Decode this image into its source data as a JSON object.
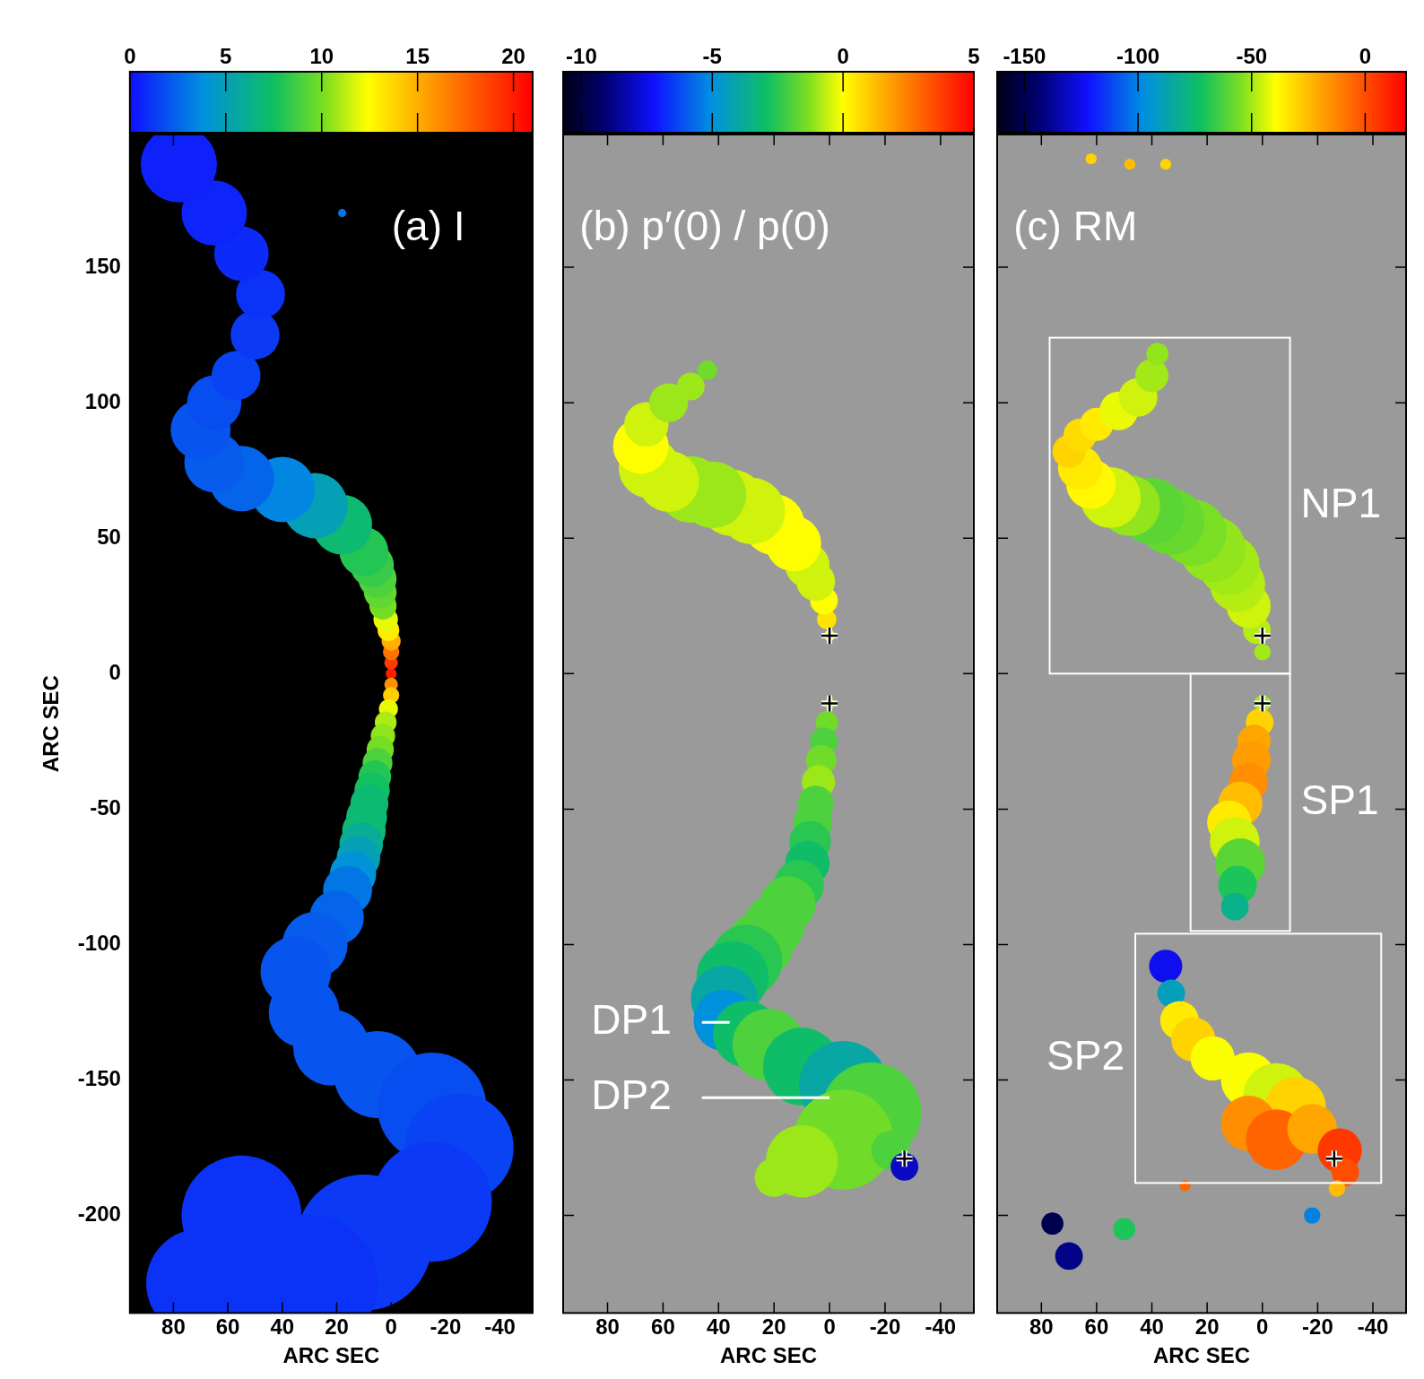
{
  "chart_data": [
    {
      "type": "heatmap",
      "title": "(a) I",
      "xlabel": "ARC SEC",
      "ylabel": "ARC SEC",
      "xlim": [
        96,
        -52
      ],
      "ylim": [
        -236,
        199
      ],
      "xticks": [
        80,
        60,
        40,
        20,
        0,
        -20,
        -40
      ],
      "yticks": [
        -200,
        -150,
        -100,
        -50,
        0,
        50,
        100,
        150
      ],
      "colorbar": {
        "range": [
          0,
          21
        ],
        "ticks": [
          0,
          5,
          10,
          15,
          20
        ]
      },
      "cells": {
        "x": [
          0,
          0,
          0,
          0,
          1,
          2,
          3,
          4,
          5,
          7,
          10,
          18,
          28,
          40,
          55,
          65,
          70,
          65,
          57,
          50,
          48,
          55,
          65,
          78,
          18,
          0,
          0,
          1,
          2,
          3,
          4,
          5,
          6,
          7,
          8,
          9,
          10,
          11,
          12,
          14,
          16,
          20,
          28,
          35,
          32,
          22,
          5,
          -15,
          -25,
          -15,
          10,
          30,
          55,
          70,
          40
        ],
        "y": [
          0,
          4,
          8,
          12,
          16,
          20,
          25,
          30,
          35,
          40,
          45,
          55,
          62,
          68,
          72,
          78,
          90,
          100,
          110,
          125,
          140,
          155,
          170,
          188,
          170,
          -4,
          -8,
          -13,
          -18,
          -23,
          -28,
          -33,
          -38,
          -43,
          -48,
          -53,
          -58,
          -63,
          -68,
          -74,
          -80,
          -90,
          -100,
          -110,
          -125,
          -138,
          -148,
          -160,
          -175,
          -195,
          -210,
          -225,
          -200,
          -225,
          -235
        ],
        "width": [
          4,
          5,
          6,
          7,
          8,
          9,
          10,
          12,
          14,
          16,
          18,
          22,
          24,
          24,
          24,
          22,
          22,
          20,
          18,
          18,
          18,
          20,
          24,
          28,
          3,
          5,
          6,
          7,
          8,
          9,
          10,
          11,
          12,
          13,
          14,
          15,
          16,
          16,
          16,
          17,
          18,
          20,
          24,
          26,
          26,
          28,
          32,
          40,
          40,
          44,
          50,
          50,
          44,
          40,
          50
        ],
        "values": [
          20,
          19,
          17,
          15,
          13,
          12,
          10,
          9.5,
          9,
          8.5,
          8,
          7,
          5,
          3.5,
          2.5,
          2.2,
          2,
          1.8,
          1.5,
          1.2,
          1,
          0.8,
          0.6,
          0.5,
          3,
          16,
          14,
          12,
          11,
          10.5,
          10,
          9,
          8,
          7.5,
          7,
          7,
          7,
          6,
          5,
          4,
          3,
          2.5,
          2.2,
          2,
          2,
          2,
          2,
          1.8,
          1.5,
          1.2,
          1.2,
          1,
          1,
          1,
          1
        ]
      }
    },
    {
      "type": "heatmap",
      "title": "(b) p′(0) / p(0)",
      "xlabel": "ARC SEC",
      "tick_labels": "x",
      "xlim": [
        96,
        -52
      ],
      "ylim": [
        -236,
        199
      ],
      "xticks": [
        80,
        60,
        40,
        20,
        0,
        -20,
        -40
      ],
      "yticks": [
        -200,
        -150,
        -100,
        -50,
        0,
        50,
        100,
        150
      ],
      "colorbar": {
        "range": [
          -10.7,
          5
        ],
        "ticks": [
          -10,
          -5,
          0,
          5
        ]
      },
      "cells": {
        "x": [
          0,
          1,
          2,
          5,
          8,
          13,
          20,
          28,
          35,
          42,
          50,
          58,
          65,
          68,
          66,
          58,
          50,
          44,
          0,
          1,
          2,
          3,
          4,
          5,
          6,
          7,
          8,
          11,
          15,
          20,
          25,
          30,
          35,
          38,
          38,
          30,
          22,
          10,
          -5,
          -15,
          -5,
          10,
          20,
          -22,
          -27
        ],
        "y": [
          14,
          20,
          27,
          34,
          40,
          48,
          55,
          60,
          63,
          66,
          68,
          71,
          76,
          84,
          92,
          100,
          106,
          112,
          -11,
          -18,
          -25,
          -32,
          -40,
          -48,
          -55,
          -62,
          -70,
          -78,
          -85,
          -93,
          -100,
          -106,
          -112,
          -120,
          -128,
          -133,
          -137,
          -145,
          -152,
          -162,
          -172,
          -180,
          -186,
          -176,
          -182
        ],
        "width": [
          4,
          7,
          10,
          14,
          16,
          20,
          22,
          24,
          24,
          24,
          24,
          22,
          22,
          20,
          16,
          14,
          10,
          7,
          4,
          8,
          10,
          11,
          12,
          13,
          14,
          15,
          16,
          18,
          20,
          22,
          24,
          26,
          26,
          24,
          22,
          24,
          26,
          28,
          32,
          36,
          36,
          26,
          14,
          14,
          10
        ],
        "values": [
          0,
          0.5,
          0,
          -0.5,
          -0.5,
          0,
          0,
          -0.5,
          -0.5,
          -1,
          -1,
          -0.5,
          -0.5,
          0,
          -0.5,
          -1,
          -1,
          -1.5,
          -1,
          -1.5,
          -2,
          -1.5,
          -1,
          -2,
          -2,
          -2.5,
          -3,
          -2.5,
          -2,
          -2,
          -2,
          -2.5,
          -3,
          -4,
          -5,
          -3,
          -2,
          -3,
          -4,
          -2,
          -1.5,
          -1,
          -1,
          -2,
          -8
        ]
      },
      "markers": {
        "marker": "cross",
        "x": [
          0,
          0,
          -27
        ],
        "y": [
          14,
          -11,
          -179
        ]
      },
      "annotations": [
        {
          "text": "DP1",
          "x": [
            46,
            36
          ],
          "y": -128.7
        },
        {
          "text": "DP2",
          "x": [
            46,
            0
          ],
          "y": -156.5
        }
      ]
    },
    {
      "type": "heatmap",
      "title": "(c) RM",
      "xlabel": "ARC SEC",
      "tick_labels": "x",
      "xlim": [
        96,
        -52
      ],
      "ylim": [
        -236,
        199
      ],
      "xticks": [
        80,
        60,
        40,
        20,
        0,
        -20,
        -40
      ],
      "yticks": [
        -200,
        -150,
        -100,
        -50,
        0,
        50,
        100,
        150
      ],
      "colorbar": {
        "range": [
          -162,
          18
        ],
        "ticks": [
          -150,
          -100,
          -50,
          0
        ]
      },
      "cells": {
        "x": [
          0,
          2,
          5,
          9,
          12,
          18,
          25,
          33,
          40,
          48,
          55,
          62,
          66,
          70,
          66,
          60,
          52,
          45,
          40,
          38,
          0,
          1,
          3,
          4,
          5,
          8,
          12,
          10,
          8,
          9,
          10,
          35,
          33,
          30,
          25,
          18,
          5,
          -5,
          -12,
          5,
          -5,
          -18,
          -28,
          -30,
          -27,
          70,
          76,
          50,
          -18,
          28,
          35,
          62,
          48
        ],
        "y": [
          8,
          16,
          25,
          33,
          40,
          46,
          52,
          56,
          60,
          62,
          65,
          70,
          76,
          82,
          88,
          92,
          97,
          102,
          110,
          118,
          -11,
          -18,
          -25,
          -32,
          -40,
          -48,
          -55,
          -62,
          -70,
          -78,
          -86,
          -108,
          -118,
          -128,
          -135,
          -142,
          -150,
          -156,
          -160,
          -166,
          -172,
          -168,
          -176,
          -184,
          -190,
          -215,
          -203,
          -205,
          -200,
          -189,
          188,
          190,
          188
        ],
        "width": [
          6,
          10,
          16,
          20,
          22,
          24,
          24,
          24,
          24,
          22,
          22,
          18,
          16,
          12,
          12,
          12,
          14,
          14,
          12,
          8,
          6,
          10,
          12,
          14,
          14,
          16,
          16,
          18,
          18,
          14,
          10,
          12,
          10,
          14,
          16,
          16,
          20,
          24,
          22,
          20,
          22,
          18,
          16,
          10,
          6,
          10,
          8,
          8,
          6,
          4,
          4,
          4,
          4
        ],
        "values": [
          -50,
          -48,
          -45,
          -48,
          -50,
          -52,
          -55,
          -58,
          -60,
          -52,
          -45,
          -38,
          -35,
          -30,
          -32,
          -35,
          -42,
          -45,
          -50,
          -52,
          -50,
          -30,
          -20,
          -18,
          -15,
          -25,
          -35,
          -45,
          -60,
          -70,
          -80,
          -125,
          -90,
          -35,
          -30,
          -40,
          -40,
          -45,
          -30,
          -15,
          -5,
          -20,
          5,
          0,
          -25,
          -140,
          -150,
          -70,
          -100,
          -5,
          -30,
          -30,
          -25
        ]
      },
      "markers": {
        "marker": "cross",
        "x": [
          0,
          0,
          -26
        ],
        "y": [
          14,
          -11,
          -179
        ]
      },
      "regions": [
        {
          "label": "NP1",
          "x": [
            77,
            -10
          ],
          "y": [
            0,
            124
          ]
        },
        {
          "label": "SP1",
          "x": [
            26,
            -10
          ],
          "y": [
            -95,
            0
          ]
        },
        {
          "label": "SP2",
          "x": [
            46,
            -43
          ],
          "y": [
            -188,
            -96
          ]
        }
      ]
    }
  ]
}
